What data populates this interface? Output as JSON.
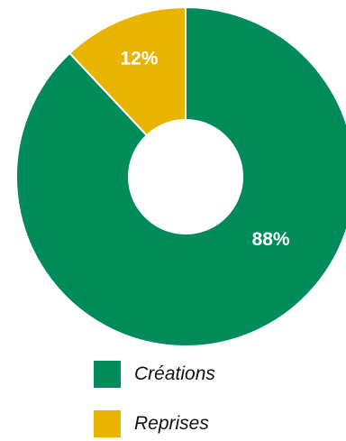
{
  "chart_data": {
    "type": "pie",
    "donut": true,
    "categories": [
      "Créations",
      "Reprises"
    ],
    "values": [
      88,
      12
    ],
    "value_labels": [
      "88%",
      "12%"
    ],
    "colors": [
      "#008b5a",
      "#e8b400"
    ],
    "legend_position": "bottom",
    "title": ""
  }
}
